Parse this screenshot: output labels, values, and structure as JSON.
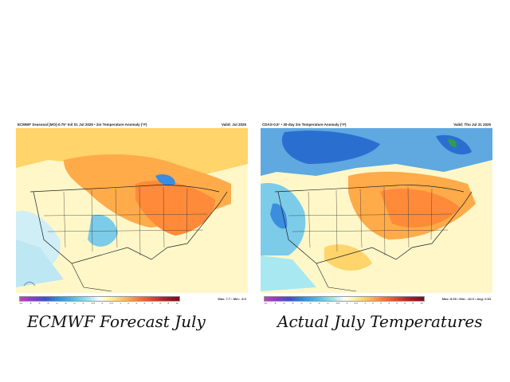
{
  "panels": [
    {
      "header": "ECMWF Seasonal [MO]-0.75° Init 01 Jul 2025 • 2m Temperature Anomaly (°F)",
      "valid": "Valid: Jul 2025",
      "stats": "Max: 7.7 • Min: -5.0",
      "caption": "ECMWF Forecast July"
    },
    {
      "header": "CDAS-0.5° • 30-day 2m Temperature Anomaly (°F)",
      "valid": "Valid: Thu Jul 31 2025",
      "stats": "Max: 8.09 • Min: -10.0 • Avg: 0.53",
      "caption": "Actual July Temperatures"
    }
  ],
  "colorbar": {
    "ticks": [
      "-10",
      "-8",
      "-6",
      "-5",
      "-4",
      "-3",
      "-2",
      "-1",
      "-0.5",
      "0",
      "0.5",
      "1",
      "2",
      "3",
      "4",
      "5",
      "6",
      "8",
      "10"
    ]
  },
  "map_colors": {
    "warm": "#ffab4a",
    "warm_light": "#ffd46a",
    "yellow": "#fff3a6",
    "cool": "#45b6e8",
    "cool_light": "#a8e8f0",
    "cool_deep": "#2a6fd0",
    "ocean_neutral": "#f3f3ee"
  }
}
